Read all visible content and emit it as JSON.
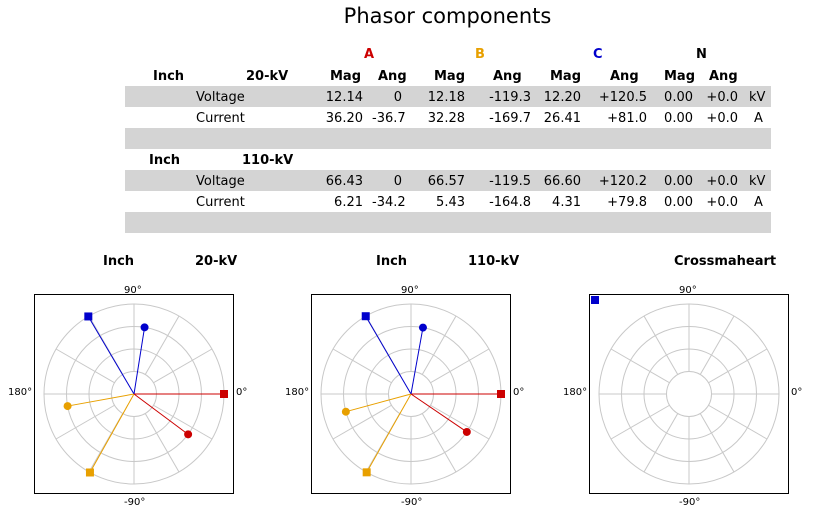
{
  "title": "Phasor components",
  "phases": {
    "a": {
      "label": "A",
      "color": "#cc0000"
    },
    "b": {
      "label": "B",
      "color": "#e8a000"
    },
    "c": {
      "label": "C",
      "color": "#0000cc"
    },
    "n": {
      "label": "N",
      "color": "#000000"
    }
  },
  "col_headers": {
    "mag": "Mag",
    "ang": "Ang"
  },
  "sections": [
    {
      "location": "Inch",
      "voltage_level": "20-kV",
      "rows": [
        {
          "label": "Voltage",
          "a_mag": "12.14",
          "a_ang": "0",
          "b_mag": "12.18",
          "b_ang": "-119.3",
          "c_mag": "12.20",
          "c_ang": "+120.5",
          "n_mag": "0.00",
          "n_ang": "+0.0",
          "unit": "kV"
        },
        {
          "label": "Current",
          "a_mag": "36.20",
          "a_ang": "-36.7",
          "b_mag": "32.28",
          "b_ang": "-169.7",
          "c_mag": "26.41",
          "c_ang": "+81.0",
          "n_mag": "0.00",
          "n_ang": "+0.0",
          "unit": "A"
        }
      ]
    },
    {
      "location": "Inch",
      "voltage_level": "110-kV",
      "rows": [
        {
          "label": "Voltage",
          "a_mag": "66.43",
          "a_ang": "0",
          "b_mag": "66.57",
          "b_ang": "-119.5",
          "c_mag": "66.60",
          "c_ang": "+120.2",
          "n_mag": "0.00",
          "n_ang": "+0.0",
          "unit": "kV"
        },
        {
          "label": "Current",
          "a_mag": "6.21",
          "a_ang": "-34.2",
          "b_mag": "5.43",
          "b_ang": "-164.8",
          "c_mag": "4.31",
          "c_ang": "+79.8",
          "n_mag": "0.00",
          "n_ang": "+0.0",
          "unit": "A"
        }
      ]
    }
  ],
  "plots": [
    {
      "left_label": "Inch",
      "right_label": "20-kV"
    },
    {
      "left_label": "Inch",
      "right_label": "110-kV"
    },
    {
      "left_label": "",
      "right_label": "Crossmaheart"
    }
  ],
  "axis_labels": {
    "top": "90°",
    "bottom": "-90°",
    "left": "180°",
    "right": "0°"
  },
  "chart_data": [
    {
      "type": "scatter",
      "title": "Inch 20-kV",
      "coordinate": "polar",
      "voltage": [
        {
          "phase": "A",
          "angle": 0
        },
        {
          "phase": "B",
          "angle": -119.3
        },
        {
          "phase": "C",
          "angle": 120.5
        }
      ],
      "current": [
        {
          "phase": "A",
          "angle": -36.7
        },
        {
          "phase": "B",
          "angle": -169.7
        },
        {
          "phase": "C",
          "angle": 81.0
        }
      ]
    },
    {
      "type": "scatter",
      "title": "Inch 110-kV",
      "coordinate": "polar",
      "voltage": [
        {
          "phase": "A",
          "angle": 0
        },
        {
          "phase": "B",
          "angle": -119.5
        },
        {
          "phase": "C",
          "angle": 120.2
        }
      ],
      "current": [
        {
          "phase": "A",
          "angle": -34.2
        },
        {
          "phase": "B",
          "angle": -164.8
        },
        {
          "phase": "C",
          "angle": 79.8
        }
      ]
    },
    {
      "type": "scatter",
      "title": "Crossmaheart",
      "coordinate": "polar",
      "voltage": [],
      "current": []
    }
  ]
}
